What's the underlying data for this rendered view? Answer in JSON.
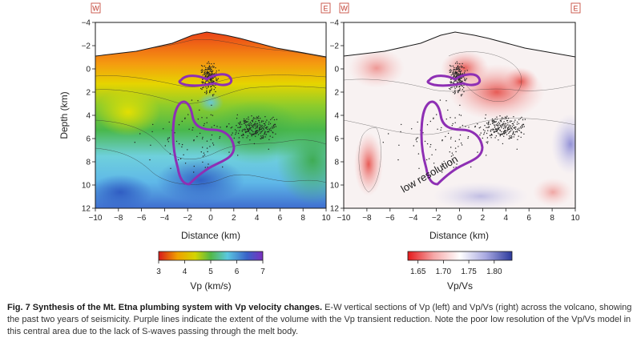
{
  "panels": [
    {
      "id": "vp",
      "west_label": "W",
      "east_label": "E",
      "xlabel": "Distance (km)",
      "ylabel": "Depth (km)",
      "annotation": ""
    },
    {
      "id": "vpvs",
      "west_label": "W",
      "east_label": "E",
      "xlabel": "Distance (km)",
      "ylabel": "",
      "annotation": "low resolution"
    }
  ],
  "axes": {
    "x_ticks": [
      "−10",
      "−8",
      "−6",
      "−4",
      "−2",
      "0",
      "2",
      "4",
      "6",
      "8",
      "10"
    ],
    "y_ticks": [
      "−4",
      "−2",
      "0",
      "2",
      "4",
      "6",
      "8",
      "10",
      "12"
    ],
    "x_range": [
      -10,
      10
    ],
    "y_range": [
      -4,
      12
    ]
  },
  "colorbars": [
    {
      "title": "Vp (km/s)",
      "ticks": [
        "3",
        "4",
        "5",
        "6",
        "7"
      ],
      "range": [
        3,
        7
      ],
      "colors": [
        "#d7191c",
        "#f0a000",
        "#d4d400",
        "#52b847",
        "#5ac8e0",
        "#3a62c8",
        "#7b2fbf"
      ]
    },
    {
      "title": "Vp/Vs",
      "ticks": [
        "1.65",
        "1.70",
        "1.75",
        "1.80"
      ],
      "range": [
        1.63,
        1.835
      ],
      "colors": [
        "#e41a1c",
        "#f6a8a8",
        "#ffffff",
        "#a8a8e0",
        "#2c3a9c"
      ]
    }
  ],
  "caption": {
    "title": "Fig. 7 Synthesis of the Mt. Etna plumbing system with Vp velocity changes.",
    "body": " E-W vertical sections of Vp (left) and Vp/Vs (right) across the volcano, showing the past two years of seismicity. Purple lines indicate the extent of the volume with the Vp transient reduction. Note the poor low resolution of the Vp/Vs model in this central area due to the lack of S-waves passing through the melt body."
  },
  "outline_color": "#8e2fb4"
}
